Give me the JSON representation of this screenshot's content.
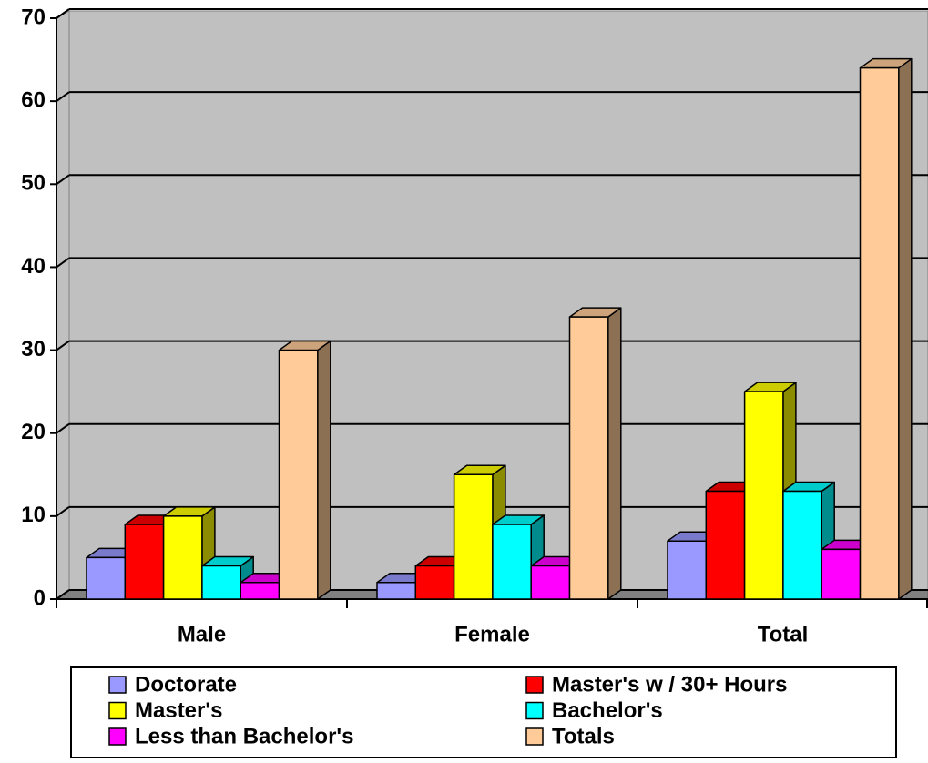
{
  "chart_data": {
    "type": "bar3d",
    "categories": [
      "Male",
      "Female",
      "Total"
    ],
    "series": [
      {
        "name": "Doctorate",
        "color": "#9999ff",
        "values": [
          5,
          2,
          7
        ]
      },
      {
        "name": "Master's w / 30+ Hours",
        "color": "#ff0000",
        "values": [
          9,
          4,
          13
        ]
      },
      {
        "name": "Master's",
        "color": "#ffff00",
        "values": [
          10,
          15,
          25
        ]
      },
      {
        "name": "Bachelor's",
        "color": "#00ffff",
        "values": [
          4,
          9,
          13
        ]
      },
      {
        "name": "Less than Bachelor's",
        "color": "#ff00ff",
        "values": [
          2,
          4,
          6
        ]
      },
      {
        "name": "Totals",
        "color": "#ffcc99",
        "values": [
          30,
          34,
          64
        ]
      }
    ],
    "ylim": [
      0,
      70
    ],
    "yticks": [
      0,
      10,
      20,
      30,
      40,
      50,
      60,
      70
    ],
    "grid": true,
    "legend": "bottom"
  }
}
